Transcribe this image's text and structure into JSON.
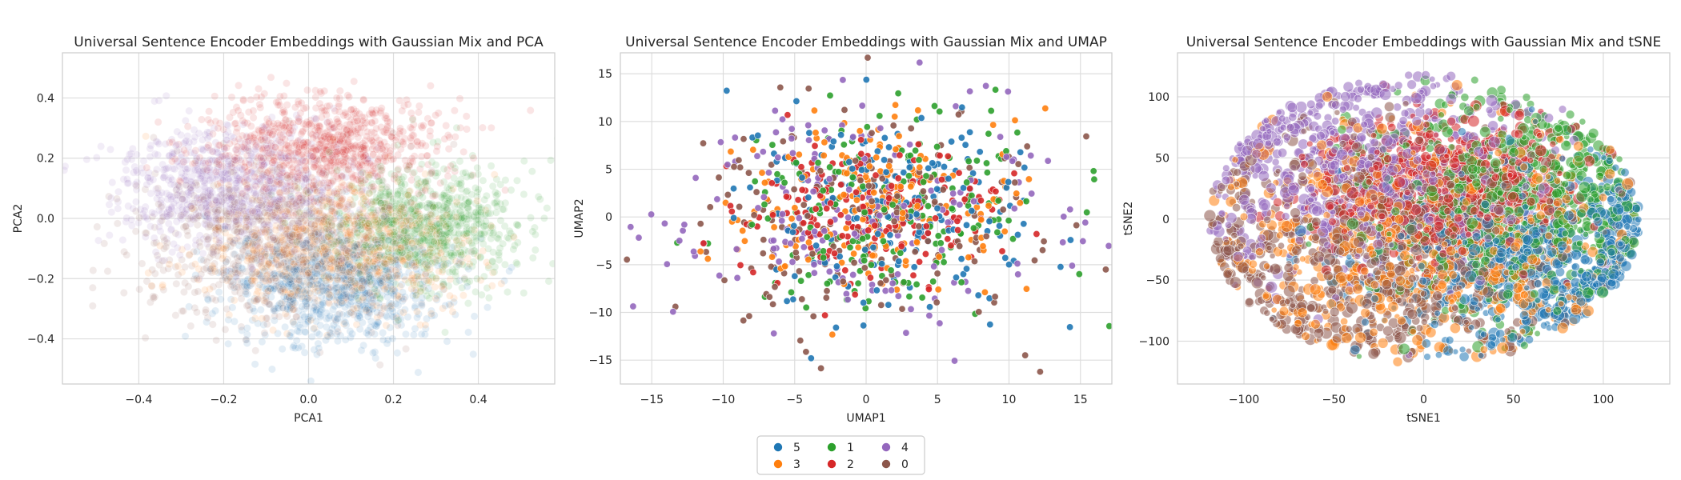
{
  "chart_data": [
    {
      "type": "scatter",
      "title": "Universal Sentence Encoder Embeddings with Gaussian Mix and PCA",
      "xlabel": "PCA1",
      "ylabel": "PCA2",
      "xlim": [
        -0.58,
        0.58
      ],
      "ylim": [
        -0.55,
        0.55
      ],
      "xticks": [
        -0.4,
        -0.2,
        0.0,
        0.2,
        0.4
      ],
      "yticks": [
        -0.4,
        -0.2,
        0.0,
        0.2,
        0.4
      ],
      "xtick_labels": [
        "−0.4",
        "−0.2",
        "0.0",
        "0.2",
        "0.4"
      ],
      "ytick_labels": [
        "−0.4",
        "−0.2",
        "0.0",
        "0.2",
        "0.4"
      ],
      "grid": true,
      "point_alpha": 0.12,
      "clusters": [
        {
          "label": "0",
          "center": [
            -0.08,
            -0.08
          ],
          "spread": [
            0.16,
            0.12
          ]
        },
        {
          "label": "4",
          "center": [
            -0.17,
            0.1
          ],
          "spread": [
            0.13,
            0.1
          ]
        },
        {
          "label": "2",
          "center": [
            0.04,
            0.24
          ],
          "spread": [
            0.14,
            0.09
          ]
        },
        {
          "label": "1",
          "center": [
            0.27,
            -0.02
          ],
          "spread": [
            0.11,
            0.1
          ]
        },
        {
          "label": "3",
          "center": [
            0.08,
            -0.1
          ],
          "spread": [
            0.15,
            0.11
          ]
        },
        {
          "label": "5",
          "center": [
            0.06,
            -0.22
          ],
          "spread": [
            0.13,
            0.1
          ]
        }
      ]
    },
    {
      "type": "scatter",
      "title": "Universal Sentence Encoder Embeddings with Gaussian Mix and UMAP",
      "xlabel": "UMAP1",
      "ylabel": "UMAP2",
      "xlim": [
        -17.2,
        17.2
      ],
      "ylim": [
        -17.5,
        17.2
      ],
      "xticks": [
        -15,
        -10,
        -5,
        0,
        5,
        10,
        15
      ],
      "yticks": [
        -15,
        -10,
        -5,
        0,
        5,
        10,
        15
      ],
      "xtick_labels": [
        "−15",
        "−10",
        "−5",
        "0",
        "5",
        "10",
        "15"
      ],
      "ytick_labels": [
        "−15",
        "−10",
        "−5",
        "0",
        "5",
        "10",
        "15"
      ],
      "grid": true,
      "point_alpha": 0.9,
      "clusters": [
        {
          "label": "0",
          "center": [
            0,
            0
          ],
          "spread": [
            6.2,
            5.8
          ]
        },
        {
          "label": "4",
          "center": [
            -1,
            0.5
          ],
          "spread": [
            6.8,
            6.0
          ]
        },
        {
          "label": "2",
          "center": [
            0,
            0.5
          ],
          "spread": [
            4.2,
            3.6
          ]
        },
        {
          "label": "1",
          "center": [
            1.5,
            0.5
          ],
          "spread": [
            5.5,
            5.0
          ]
        },
        {
          "label": "3",
          "center": [
            0,
            1.5
          ],
          "spread": [
            5.2,
            4.6
          ]
        },
        {
          "label": "5",
          "center": [
            1.5,
            1
          ],
          "spread": [
            5.4,
            4.8
          ]
        }
      ]
    },
    {
      "type": "scatter",
      "title": "Universal Sentence Encoder Embeddings with Gaussian Mix and tSNE",
      "xlabel": "tSNE1",
      "ylabel": "tSNE2",
      "xlim": [
        -137,
        137
      ],
      "ylim": [
        -135,
        136
      ],
      "xticks": [
        -100,
        -50,
        0,
        50,
        100
      ],
      "yticks": [
        -100,
        -50,
        0,
        50,
        100
      ],
      "xtick_labels": [
        "−100",
        "−50",
        "0",
        "50",
        "100"
      ],
      "ytick_labels": [
        "−100",
        "−50",
        "0",
        "50",
        "100"
      ],
      "grid": true,
      "point_alpha": 0.55,
      "clusters": [
        {
          "label": "0",
          "center": [
            -30,
            -30
          ],
          "spread": [
            55,
            50
          ]
        },
        {
          "label": "4",
          "center": [
            -35,
            40
          ],
          "spread": [
            50,
            45
          ]
        },
        {
          "label": "2",
          "center": [
            10,
            25
          ],
          "spread": [
            35,
            30
          ]
        },
        {
          "label": "1",
          "center": [
            50,
            10
          ],
          "spread": [
            40,
            45
          ]
        },
        {
          "label": "3",
          "center": [
            0,
            -20
          ],
          "spread": [
            55,
            45
          ]
        },
        {
          "label": "5",
          "center": [
            60,
            -30
          ],
          "spread": [
            50,
            40
          ]
        }
      ]
    }
  ],
  "legend": {
    "placement": "bottom-center",
    "entries": [
      {
        "label": "5",
        "color": "#1f77b4"
      },
      {
        "label": "1",
        "color": "#2ca02c"
      },
      {
        "label": "4",
        "color": "#9467bd"
      },
      {
        "label": "3",
        "color": "#ff7f0e"
      },
      {
        "label": "2",
        "color": "#d62728"
      },
      {
        "label": "0",
        "color": "#8c564b"
      }
    ]
  },
  "colors": {
    "5": "#1f77b4",
    "3": "#ff7f0e",
    "1": "#2ca02c",
    "2": "#d62728",
    "4": "#9467bd",
    "0": "#8c564b",
    "grid": "#dddddd",
    "spine": "#cccccc"
  }
}
